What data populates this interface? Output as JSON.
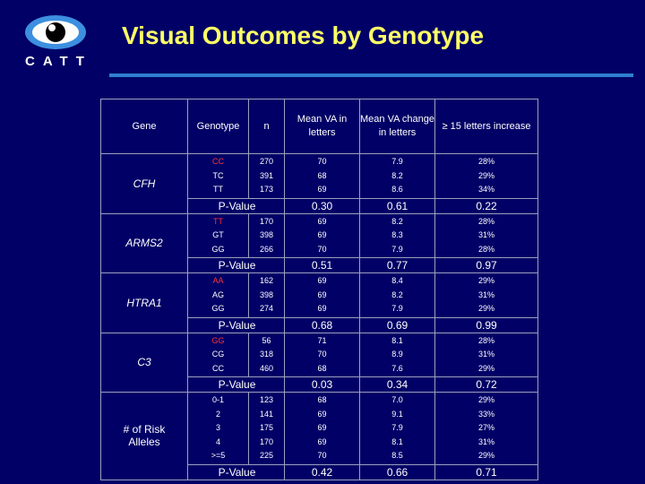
{
  "title": "Visual Outcomes by Genotype",
  "logo": {
    "text": "CATT"
  },
  "headers": {
    "gene": "Gene",
    "genotype": "Genotype",
    "n": "n",
    "mean_va": "Mean VA in letters",
    "mean_va_change": "Mean VA change in letters",
    "ge15": "≥ 15 letters increase"
  },
  "colors": {
    "background": "#000066",
    "title": "#ffff66",
    "highlight": "#ff3333",
    "pvalue": "#33cc33",
    "rule": "#2f7fd0"
  },
  "groups": [
    {
      "gene": "CFH",
      "genotypes": [
        "CC",
        "TC",
        "TT"
      ],
      "n": [
        "270",
        "391",
        "173"
      ],
      "mean_va": [
        "70",
        "68",
        "69"
      ],
      "change": [
        "7.9",
        "8.2",
        "8.6"
      ],
      "ge15": [
        "28%",
        "29%",
        "34%"
      ],
      "pvalue_label": "P-Value",
      "p_mean_va": "0.30",
      "p_change": "0.61",
      "p_ge15": "0.22"
    },
    {
      "gene": "ARMS2",
      "genotypes": [
        "TT",
        "GT",
        "GG"
      ],
      "n": [
        "170",
        "398",
        "266"
      ],
      "mean_va": [
        "69",
        "69",
        "70"
      ],
      "change": [
        "8.2",
        "8.3",
        "7.9"
      ],
      "ge15": [
        "28%",
        "31%",
        "28%"
      ],
      "pvalue_label": "P-Value",
      "p_mean_va": "0.51",
      "p_change": "0.77",
      "p_ge15": "0.97"
    },
    {
      "gene": "HTRA1",
      "genotypes": [
        "AA",
        "AG",
        "GG"
      ],
      "n": [
        "162",
        "398",
        "274"
      ],
      "mean_va": [
        "69",
        "69",
        "69"
      ],
      "change": [
        "8.4",
        "8.2",
        "7.9"
      ],
      "ge15": [
        "29%",
        "31%",
        "29%"
      ],
      "pvalue_label": "P-Value",
      "p_mean_va": "0.68",
      "p_change": "0.69",
      "p_ge15": "0.99"
    },
    {
      "gene": "C3",
      "genotypes": [
        "GG",
        "CG",
        "CC"
      ],
      "n": [
        "56",
        "318",
        "460"
      ],
      "mean_va": [
        "71",
        "70",
        "68"
      ],
      "change": [
        "8.1",
        "8.9",
        "7.6"
      ],
      "ge15": [
        "28%",
        "31%",
        "29%"
      ],
      "pvalue_label": "P-Value",
      "p_mean_va": "0.03",
      "p_change": "0.34",
      "p_ge15": "0.72"
    },
    {
      "gene": "# of Risk Alleles",
      "genotypes": [
        "0-1",
        "2",
        "3",
        "4",
        ">=5"
      ],
      "n": [
        "123",
        "141",
        "175",
        "170",
        "225"
      ],
      "mean_va": [
        "68",
        "69",
        "69",
        "69",
        "70"
      ],
      "change": [
        "7.0",
        "9.1",
        "7.9",
        "8.1",
        "8.5"
      ],
      "ge15": [
        "29%",
        "33%",
        "27%",
        "31%",
        "29%"
      ],
      "pvalue_label": "P-Value",
      "p_mean_va": "0.42",
      "p_change": "0.66",
      "p_ge15": "0.71"
    }
  ]
}
